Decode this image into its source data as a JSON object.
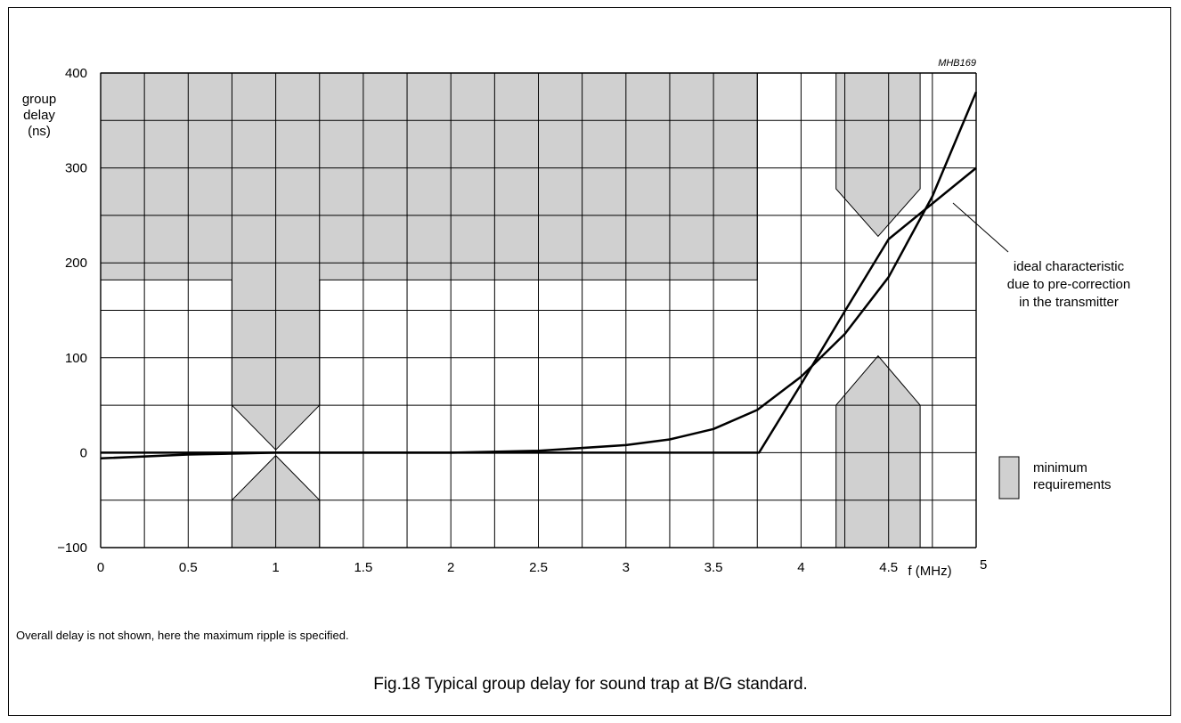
{
  "chart_data": {
    "type": "line",
    "code": "MHB169",
    "ylabel": [
      "group",
      "delay",
      "(ns)"
    ],
    "xlabel": "f (MHz)",
    "xlim": [
      0,
      5
    ],
    "ylim": [
      -100,
      400
    ],
    "x_ticks": [
      0,
      0.5,
      1,
      1.5,
      2,
      2.5,
      3,
      3.5,
      4,
      4.5,
      5
    ],
    "x_tick_labels": [
      "0",
      "0.5",
      "1",
      "1.5",
      "2",
      "2.5",
      "3",
      "3.5",
      "4",
      "4.5",
      "5"
    ],
    "y_ticks": [
      -100,
      0,
      100,
      200,
      300,
      400
    ],
    "y_tick_labels": [
      "−100",
      "0",
      "100",
      "200",
      "300",
      "400"
    ],
    "grid": true,
    "series": [
      {
        "points": [
          [
            0,
            -6
          ],
          [
            0.5,
            -2
          ],
          [
            1,
            0
          ],
          [
            1.5,
            0
          ],
          [
            2,
            0
          ],
          [
            2.5,
            2
          ],
          [
            3,
            8
          ],
          [
            3.25,
            14
          ],
          [
            3.5,
            25
          ],
          [
            3.75,
            45
          ],
          [
            4,
            80
          ],
          [
            4.25,
            125
          ],
          [
            4.5,
            185
          ],
          [
            4.75,
            270
          ],
          [
            5,
            380
          ]
        ]
      },
      {
        "name": "ideal characteristic due to pre-correction in the transmitter",
        "points": [
          [
            0,
            0
          ],
          [
            3.76,
            0
          ],
          [
            4.0,
            72
          ],
          [
            4.25,
            149
          ],
          [
            4.5,
            225
          ],
          [
            5,
            300
          ]
        ]
      }
    ],
    "tolerance_regions": [
      [
        [
          0,
          400
        ],
        [
          3.75,
          400
        ],
        [
          3.75,
          182
        ],
        [
          1.25,
          182
        ],
        [
          1.25,
          50
        ],
        [
          1,
          3
        ],
        [
          0.75,
          50
        ],
        [
          0.75,
          182
        ],
        [
          0,
          182
        ]
      ],
      [
        [
          0.75,
          -100
        ],
        [
          1.25,
          -100
        ],
        [
          1.25,
          -50
        ],
        [
          1,
          -3
        ],
        [
          0.75,
          -50
        ]
      ],
      [
        [
          4.2,
          400
        ],
        [
          4.68,
          400
        ],
        [
          4.68,
          278
        ],
        [
          4.44,
          228
        ],
        [
          4.2,
          278
        ]
      ],
      [
        [
          4.2,
          -100
        ],
        [
          4.68,
          -100
        ],
        [
          4.68,
          50
        ],
        [
          4.44,
          102
        ],
        [
          4.2,
          50
        ]
      ]
    ],
    "legend": {
      "entry": [
        "minimum",
        "requirements"
      ],
      "fill": "#d0d0d0"
    },
    "annotation": [
      "ideal characteristic",
      "due to pre-correction",
      "in the transmitter"
    ],
    "region_fill": "#d0d0d0",
    "line_color": "#000000"
  },
  "note": "Overall delay is not shown, here the maximum ripple is specified.",
  "caption": "Fig.18  Typical group delay for sound trap at B/G standard."
}
